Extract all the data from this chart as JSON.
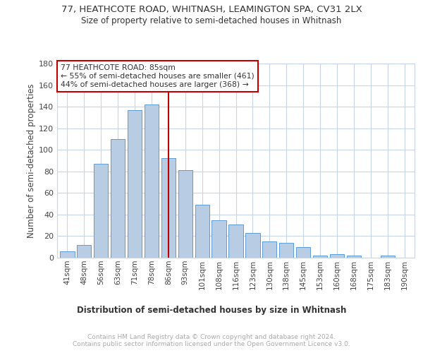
{
  "title": "77, HEATHCOTE ROAD, WHITNASH, LEAMINGTON SPA, CV31 2LX",
  "subtitle": "Size of property relative to semi-detached houses in Whitnash",
  "xlabel": "Distribution of semi-detached houses by size in Whitnash",
  "ylabel": "Number of semi-detached properties",
  "categories": [
    "41sqm",
    "48sqm",
    "56sqm",
    "63sqm",
    "71sqm",
    "78sqm",
    "86sqm",
    "93sqm",
    "101sqm",
    "108sqm",
    "116sqm",
    "123sqm",
    "130sqm",
    "138sqm",
    "145sqm",
    "153sqm",
    "160sqm",
    "168sqm",
    "175sqm",
    "183sqm",
    "190sqm"
  ],
  "values": [
    6,
    12,
    87,
    110,
    137,
    142,
    92,
    81,
    49,
    35,
    31,
    23,
    15,
    14,
    10,
    2,
    3,
    2,
    0,
    2,
    0
  ],
  "bar_color": "#b8cce4",
  "bar_edge_color": "#5b9bd5",
  "vline_x_index": 6,
  "vline_color": "#c00000",
  "annotation_text": "77 HEATHCOTE ROAD: 85sqm\n← 55% of semi-detached houses are smaller (461)\n44% of semi-detached houses are larger (368) →",
  "annotation_box_color": "#ffffff",
  "annotation_box_edge_color": "#c00000",
  "ylim": [
    0,
    180
  ],
  "yticks": [
    0,
    20,
    40,
    60,
    80,
    100,
    120,
    140,
    160,
    180
  ],
  "footer_text": "Contains HM Land Registry data © Crown copyright and database right 2024.\nContains public sector information licensed under the Open Government Licence v3.0.",
  "background_color": "#ffffff",
  "grid_color": "#c8d4e8"
}
